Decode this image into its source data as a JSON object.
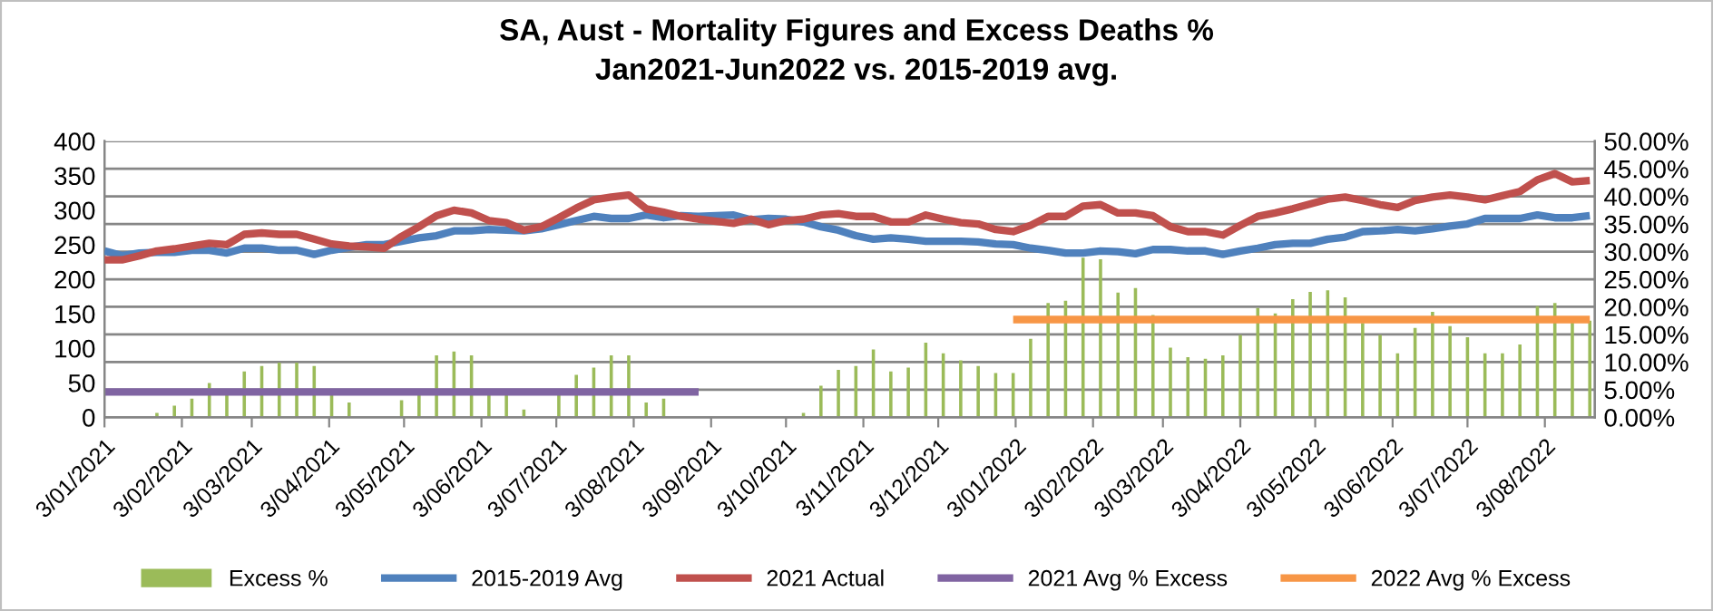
{
  "chart_data": {
    "type": "line",
    "title": "SA, Aust - Mortality Figures and Excess Deaths %\nJan2021-Jun2022 vs. 2015-2019 avg.",
    "x": [
      "2021-01-03",
      "2021-01-10",
      "2021-01-17",
      "2021-01-24",
      "2021-01-31",
      "2021-02-07",
      "2021-02-14",
      "2021-02-21",
      "2021-02-28",
      "2021-03-07",
      "2021-03-14",
      "2021-03-21",
      "2021-03-28",
      "2021-04-04",
      "2021-04-11",
      "2021-04-18",
      "2021-04-25",
      "2021-05-02",
      "2021-05-09",
      "2021-05-16",
      "2021-05-23",
      "2021-05-30",
      "2021-06-06",
      "2021-06-13",
      "2021-06-20",
      "2021-06-27",
      "2021-07-04",
      "2021-07-11",
      "2021-07-18",
      "2021-07-25",
      "2021-08-01",
      "2021-08-08",
      "2021-08-15",
      "2021-08-22",
      "2021-08-29",
      "2021-09-05",
      "2021-09-12",
      "2021-09-19",
      "2021-09-26",
      "2021-10-03",
      "2021-10-10",
      "2021-10-17",
      "2021-10-24",
      "2021-10-31",
      "2021-11-07",
      "2021-11-14",
      "2021-11-21",
      "2021-11-28",
      "2021-12-05",
      "2021-12-12",
      "2021-12-19",
      "2021-12-26",
      "2022-01-02",
      "2022-01-09",
      "2022-01-16",
      "2022-01-23",
      "2022-01-30",
      "2022-02-06",
      "2022-02-13",
      "2022-02-20",
      "2022-02-27",
      "2022-03-06",
      "2022-03-13",
      "2022-03-20",
      "2022-03-27",
      "2022-04-03",
      "2022-04-10",
      "2022-04-17",
      "2022-04-24",
      "2022-05-01",
      "2022-05-08",
      "2022-05-15",
      "2022-05-22",
      "2022-05-29",
      "2022-06-05",
      "2022-06-12",
      "2022-06-19",
      "2022-06-26",
      "2022-07-03",
      "2022-07-10",
      "2022-07-17",
      "2022-07-24",
      "2022-07-31",
      "2022-08-07",
      "2022-08-14",
      "2022-08-21"
    ],
    "series": [
      {
        "name": "Excess %",
        "type": "bar",
        "axis": "y2",
        "color": "#9bbb59",
        "values": [
          0,
          0,
          0,
          0.8,
          2.1,
          3.4,
          6.2,
          4.0,
          8.3,
          9.3,
          9.9,
          9.9,
          9.3,
          4.0,
          2.7,
          0,
          0,
          3.1,
          4.0,
          11.2,
          11.9,
          11.2,
          4.0,
          4.0,
          1.4,
          0,
          4.0,
          7.7,
          9.0,
          11.2,
          11.2,
          2.7,
          3.4,
          0,
          0,
          0,
          0,
          0,
          0,
          0,
          0.8,
          5.7,
          8.6,
          9.3,
          12.3,
          8.3,
          9.0,
          13.5,
          11.6,
          10.3,
          9.3,
          8.0,
          8.0,
          14.2,
          20.7,
          21.1,
          28.9,
          28.6,
          22.6,
          23.4,
          18.5,
          12.6,
          10.9,
          10.6,
          11.2,
          14.9,
          19.8,
          18.8,
          21.4,
          22.7,
          23.0,
          21.7,
          17.1,
          14.9,
          11.6,
          16.2,
          19.1,
          16.5,
          14.5,
          11.6,
          11.6,
          13.2,
          20.1,
          20.7,
          17.5,
          17.5
        ]
      },
      {
        "name": "2015-2019 Avg",
        "color": "#4f81bd",
        "values": [
          241,
          234,
          238,
          239,
          239,
          242,
          242,
          238,
          245,
          245,
          242,
          242,
          236,
          242,
          246,
          250,
          250,
          255,
          260,
          263,
          270,
          270,
          272,
          271,
          270,
          273,
          279,
          285,
          291,
          288,
          288,
          293,
          289,
          292,
          291,
          292,
          293,
          286,
          288,
          287,
          283,
          276,
          271,
          263,
          258,
          260,
          258,
          255,
          255,
          255,
          254,
          251,
          250,
          245,
          242,
          238,
          238,
          241,
          240,
          237,
          243,
          243,
          241,
          241,
          236,
          241,
          245,
          250,
          252,
          252,
          258,
          261,
          269,
          270,
          272,
          270,
          273,
          277,
          280,
          288,
          288,
          288,
          293,
          289,
          289,
          292
        ]
      },
      {
        "name": "2021 Actual",
        "color": "#c0504d",
        "values": [
          228,
          228,
          234,
          241,
          244,
          248,
          252,
          250,
          265,
          267,
          265,
          265,
          258,
          251,
          248,
          247,
          245,
          262,
          276,
          292,
          300,
          296,
          285,
          282,
          271,
          276,
          289,
          303,
          315,
          319,
          322,
          302,
          297,
          291,
          287,
          284,
          281,
          287,
          279,
          285,
          287,
          293,
          295,
          291,
          291,
          283,
          283,
          293,
          287,
          282,
          280,
          272,
          269,
          278,
          291,
          291,
          306,
          308,
          296,
          296,
          292,
          276,
          269,
          269,
          264,
          278,
          291,
          296,
          302,
          309,
          316,
          319,
          314,
          308,
          304,
          314,
          319,
          322,
          319,
          315,
          321,
          327,
          344,
          353,
          341,
          343
        ]
      },
      {
        "name": "2021 Avg % Excess",
        "axis": "y2",
        "color": "#8064a2",
        "x": [
          "2021-01-03",
          "2021-08-29"
        ],
        "values": [
          4.6,
          4.6
        ]
      },
      {
        "name": "2022 Avg % Excess",
        "axis": "y2",
        "color": "#f79646",
        "x": [
          "2022-01-02",
          "2022-08-21"
        ],
        "values": [
          17.7,
          17.7
        ]
      }
    ],
    "xlim": [
      "2021-01-03",
      "2022-08-23"
    ],
    "xticks": [
      {
        "value": "2021-01-03",
        "label": "3/01/2021"
      },
      {
        "value": "2021-02-03",
        "label": "3/02/2021"
      },
      {
        "value": "2021-03-03",
        "label": "3/03/2021"
      },
      {
        "value": "2021-04-03",
        "label": "3/04/2021"
      },
      {
        "value": "2021-05-03",
        "label": "3/05/2021"
      },
      {
        "value": "2021-06-03",
        "label": "3/06/2021"
      },
      {
        "value": "2021-07-03",
        "label": "3/07/2021"
      },
      {
        "value": "2021-08-03",
        "label": "3/08/2021"
      },
      {
        "value": "2021-09-03",
        "label": "3/09/2021"
      },
      {
        "value": "2021-10-03",
        "label": "3/10/2021"
      },
      {
        "value": "2021-11-03",
        "label": "3/11/2021"
      },
      {
        "value": "2021-12-03",
        "label": "3/12/2021"
      },
      {
        "value": "2022-01-03",
        "label": "3/01/2022"
      },
      {
        "value": "2022-02-03",
        "label": "3/02/2022"
      },
      {
        "value": "2022-03-03",
        "label": "3/03/2022"
      },
      {
        "value": "2022-04-03",
        "label": "3/04/2022"
      },
      {
        "value": "2022-05-03",
        "label": "3/05/2022"
      },
      {
        "value": "2022-06-03",
        "label": "3/06/2022"
      },
      {
        "value": "2022-07-03",
        "label": "3/07/2022"
      },
      {
        "value": "2022-08-03",
        "label": "3/08/2022"
      }
    ],
    "ylim": [
      0,
      400
    ],
    "yticks": [
      0,
      50,
      100,
      150,
      200,
      250,
      300,
      350,
      400
    ],
    "y2lim": [
      0,
      50
    ],
    "y2ticks": [
      {
        "value": 0,
        "label": "0.00%"
      },
      {
        "value": 5,
        "label": "5.00%"
      },
      {
        "value": 10,
        "label": "10.00%"
      },
      {
        "value": 15,
        "label": "15.00%"
      },
      {
        "value": 20,
        "label": "20.00%"
      },
      {
        "value": 25,
        "label": "25.00%"
      },
      {
        "value": 30,
        "label": "30.00%"
      },
      {
        "value": 35,
        "label": "35.00%"
      },
      {
        "value": 40,
        "label": "40.00%"
      },
      {
        "value": 45,
        "label": "45.00%"
      },
      {
        "value": 50,
        "label": "50.00%"
      }
    ],
    "grid": "y",
    "legend": "bottom",
    "marker": "none",
    "line_style": "solid"
  }
}
